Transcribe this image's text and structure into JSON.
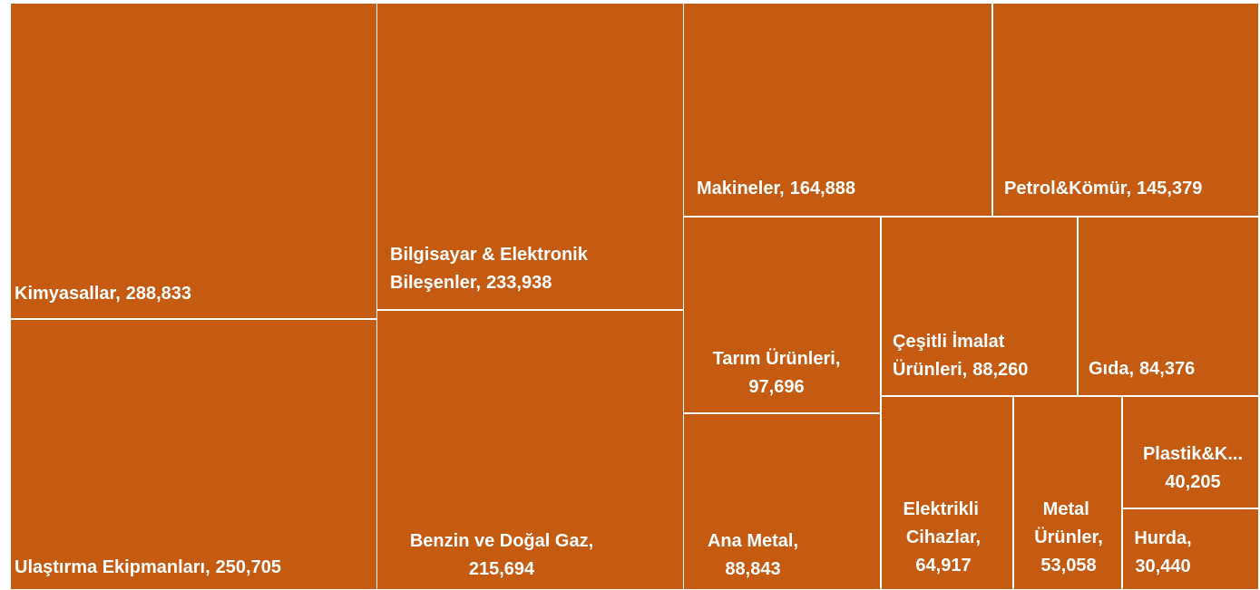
{
  "chart_data": {
    "type": "treemap",
    "categories": [
      "Kimyasallar,",
      "Ulaştırma Ekipmanları,",
      "Bilgisayar & Elektronik Bileşenler,",
      "Benzin ve Doğal Gaz,",
      "Makineler,",
      "Petrol&Kömür,",
      "Tarım Ürünleri,",
      "Çeşitli İmalat Ürünleri,",
      "Gıda,",
      "Ana Metal,",
      "Elektrikli Cihazlar,",
      "Metal Ürünler,",
      "Plastik&K...",
      "Hurda,"
    ],
    "values": [
      288833,
      250705,
      233938,
      215694,
      164888,
      145379,
      97696,
      88260,
      84376,
      88843,
      64917,
      53058,
      40205,
      30440
    ],
    "value_labels": [
      "288,833",
      "250,705",
      "233,938",
      "215,694",
      "164,888",
      "145,379",
      "97,696",
      "88,260",
      "84,376",
      "88,843",
      "64,917",
      "53,058",
      "40,205",
      "30,440"
    ],
    "color": "#c55a11"
  }
}
